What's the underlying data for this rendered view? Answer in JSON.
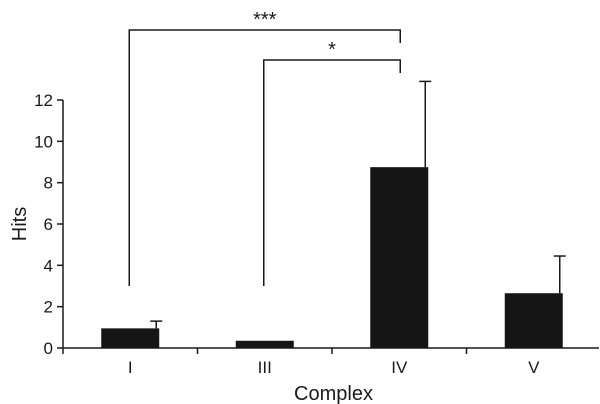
{
  "chart_data": {
    "type": "bar",
    "xlabel": "Complex",
    "ylabel": "Hits",
    "ylim": [
      0,
      12
    ],
    "yticks": [
      0,
      2,
      4,
      6,
      8,
      10,
      12
    ],
    "categories": [
      "I",
      "III",
      "IV",
      "V"
    ],
    "values": [
      0.95,
      0.35,
      8.75,
      2.65
    ],
    "errors": [
      0.35,
      0,
      4.15,
      1.8
    ],
    "bar_color": "#151515",
    "grid": false,
    "significance": [
      {
        "from": "I",
        "to": "IV",
        "label": "***"
      },
      {
        "from": "III",
        "to": "IV",
        "label": "*"
      }
    ]
  }
}
